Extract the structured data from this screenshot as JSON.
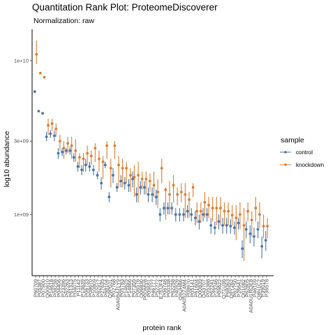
{
  "colors": {
    "control": "#4a74a8",
    "knockdown": "#d97d32",
    "axis": "#000000",
    "tick_text": "#4d4d4d"
  },
  "chart_data": {
    "type": "scatter",
    "title": "Quantitation Rank Plot: ProteomeDiscoverer",
    "subtitle": "Normalization: raw",
    "xlabel": "protein rank",
    "ylabel": "log10 abundance",
    "y_scale": "log10",
    "y_ticks": [
      1000000000,
      3000000000,
      10000000000
    ],
    "y_tick_labels": [
      "1e+09",
      "3e+09",
      "1e+10"
    ],
    "ylim": [
      400000000,
      16000000000
    ],
    "grid": false,
    "legend": {
      "title": "sample",
      "position": "right",
      "entries": [
        "control",
        "knockdown"
      ]
    },
    "categories": [
      "P60709",
      "P05387",
      "P07900",
      "Q00610",
      "P14618",
      "P08238",
      "P04406",
      "P23396",
      "P62263",
      "P61313",
      "P04075",
      "P11142",
      "P13639",
      "P06733",
      "P08670",
      "P10809",
      "P62917",
      "P27635",
      "P68104",
      "Q9P0J1",
      "P02768",
      "A0A0B4J1Y9",
      "P05783",
      "P14625",
      "P14866",
      "P07355",
      "P06576",
      "Q06830",
      "P0DMV8",
      "P09651",
      "P46777",
      "P52272",
      "E7EUF4",
      "P06748",
      "P00338",
      "P62258",
      "P40926",
      "Q9UHB6",
      "A0A0S2Z4M4",
      "P08670",
      "P05141",
      "P61604",
      "Q00839",
      "O43707",
      "P05388",
      "P62241",
      "P23246",
      "P09622",
      "Q71U36",
      "P68363",
      "Q9Y262",
      "P62750",
      "P26641",
      "Q01082",
      "P62805",
      "A0A0U1RQE8",
      "P46109",
      "Q8N1C2",
      "P39019",
      "P36578"
    ],
    "x_tick_labels": [
      "P60709",
      "P05387",
      "P07900",
      "Q00610",
      "P14618",
      "P08238",
      "P04406",
      "P23396",
      "P62263",
      "P61313",
      "P04075",
      "P11142",
      "P13639",
      "P06733",
      "P08670",
      "P10809",
      "P62917",
      "P27635",
      "P68104",
      "Q9P0J1",
      "P02768",
      "A0A0B4J1Y9",
      "P05783",
      "P14625",
      "P14866",
      "P07355",
      "P06576",
      "Q06830",
      "P0DMV8",
      "P09651",
      "P46777",
      "P52272",
      "E7EUF4",
      "P06748",
      "P00338",
      "P62258",
      "P40926",
      "Q9UHB6",
      "A0A0S2Z4M4",
      "P08670",
      "P05141",
      "P61604",
      "Q00839",
      "O43707",
      "P05388",
      "P62241",
      "P23246",
      "P09622",
      "Q71U36",
      "P68363",
      "Q9Y262",
      "P62750",
      "P26641",
      "Q01082",
      "P62805",
      "A0A0U1RQE8",
      "P46109",
      "Q8N1C2",
      "P39019",
      "P36578"
    ],
    "series": [
      {
        "name": "control",
        "values": [
          6300000000.0,
          4700000000.0,
          4550000000.0,
          3200000000.0,
          3350000000.0,
          3250000000.0,
          2500000000.0,
          2550000000.0,
          2600000000.0,
          2600000000.0,
          2350000000.0,
          2050000000.0,
          1950000000.0,
          2100000000.0,
          2050000000.0,
          1950000000.0,
          1800000000.0,
          1600000000.0,
          2100000000.0,
          1300000000.0,
          1800000000.0,
          1500000000.0,
          1650000000.0,
          1600000000.0,
          1550000000.0,
          1700000000.0,
          1350000000.0,
          1500000000.0,
          1500000000.0,
          1350000000.0,
          1350000000.0,
          1300000000.0,
          1000000000.0,
          1100000000.0,
          1100000000.0,
          1100000000.0,
          1000000000.0,
          1000000000.0,
          1000000000.0,
          1050000000.0,
          1000000000.0,
          950000000.0,
          900000000.0,
          1000000000.0,
          1000000000.0,
          850000000.0,
          820000000.0,
          900000000.0,
          850000000.0,
          850000000.0,
          840000000.0,
          820000000.0,
          880000000.0,
          600000000.0,
          800000000.0,
          750000000.0,
          720000000.0,
          800000000.0,
          620000000.0,
          680000000.0
        ],
        "upper": [
          6300000000.0,
          4700000000.0,
          4550000000.0,
          3450000000.0,
          3550000000.0,
          3500000000.0,
          2700000000.0,
          2700000000.0,
          2700000000.0,
          2750000000.0,
          2500000000.0,
          2200000000.0,
          2100000000.0,
          2300000000.0,
          2200000000.0,
          2100000000.0,
          1900000000.0,
          1750000000.0,
          2200000000.0,
          1400000000.0,
          2000000000.0,
          1600000000.0,
          1800000000.0,
          1750000000.0,
          1700000000.0,
          1900000000.0,
          1500000000.0,
          1650000000.0,
          1650000000.0,
          1500000000.0,
          1500000000.0,
          1450000000.0,
          1100000000.0,
          1200000000.0,
          1200000000.0,
          1200000000.0,
          1100000000.0,
          1100000000.0,
          1100000000.0,
          1150000000.0,
          1100000000.0,
          1050000000.0,
          1000000000.0,
          1100000000.0,
          1100000000.0,
          950000000.0,
          900000000.0,
          1000000000.0,
          950000000.0,
          950000000.0,
          930000000.0,
          900000000.0,
          950000000.0,
          680000000.0,
          900000000.0,
          850000000.0,
          820000000.0,
          900000000.0,
          720000000.0,
          780000000.0
        ],
        "lower": [
          6300000000.0,
          4700000000.0,
          4550000000.0,
          3000000000.0,
          3150000000.0,
          3000000000.0,
          2300000000.0,
          2400000000.0,
          2450000000.0,
          2450000000.0,
          2200000000.0,
          1900000000.0,
          1800000000.0,
          1900000000.0,
          1900000000.0,
          1800000000.0,
          1700000000.0,
          1450000000.0,
          2000000000.0,
          1200000000.0,
          1600000000.0,
          1400000000.0,
          1500000000.0,
          1450000000.0,
          1400000000.0,
          1500000000.0,
          1200000000.0,
          1350000000.0,
          1350000000.0,
          1200000000.0,
          1200000000.0,
          1150000000.0,
          900000000.0,
          1000000000.0,
          1000000000.0,
          1000000000.0,
          900000000.0,
          900000000.0,
          900000000.0,
          950000000.0,
          900000000.0,
          850000000.0,
          800000000.0,
          900000000.0,
          900000000.0,
          750000000.0,
          740000000.0,
          800000000.0,
          750000000.0,
          750000000.0,
          750000000.0,
          740000000.0,
          800000000.0,
          520000000.0,
          700000000.0,
          650000000.0,
          620000000.0,
          700000000.0,
          520000000.0,
          580000000.0
        ]
      },
      {
        "name": "knockdown",
        "values": [
          11000000000.0,
          8300000000.0,
          7800000000.0,
          3800000000.0,
          3900000000.0,
          3600000000.0,
          3000000000.0,
          2700000000.0,
          2900000000.0,
          2800000000.0,
          2600000000.0,
          2350000000.0,
          2300000000.0,
          2500000000.0,
          2400000000.0,
          2700000000.0,
          2300000000.0,
          2200000000.0,
          2800000000.0,
          2000000000.0,
          2800000000.0,
          2100000000.0,
          2000000000.0,
          2000000000.0,
          1800000000.0,
          1750000000.0,
          1800000000.0,
          1700000000.0,
          1700000000.0,
          1650000000.0,
          1550000000.0,
          1400000000.0,
          2000000000.0,
          1450000000.0,
          1350000000.0,
          1550000000.0,
          1350000000.0,
          1400000000.0,
          1350000000.0,
          1250000000.0,
          1500000000.0,
          1050000000.0,
          1050000000.0,
          1200000000.0,
          1150000000.0,
          1100000000.0,
          1100000000.0,
          1100000000.0,
          1050000000.0,
          1050000000.0,
          990000000.0,
          950000000.0,
          1000000000.0,
          850000000.0,
          1050000000.0,
          920000000.0,
          1100000000.0,
          1000000000.0,
          840000000.0,
          840000000.0
        ],
        "upper": [
          13500000000.0,
          8300000000.0,
          7800000000.0,
          4200000000.0,
          4200000000.0,
          3900000000.0,
          3300000000.0,
          3000000000.0,
          3200000000.0,
          3200000000.0,
          3100000000.0,
          2500000000.0,
          2500000000.0,
          2800000000.0,
          2600000000.0,
          2900000000.0,
          2600000000.0,
          2400000000.0,
          3000000000.0,
          2300000000.0,
          3000000000.0,
          2400000000.0,
          2300000000.0,
          2200000000.0,
          2000000000.0,
          2100000000.0,
          2200000000.0,
          1900000000.0,
          1900000000.0,
          1850000000.0,
          1900000000.0,
          1700000000.0,
          2300000000.0,
          1500000000.0,
          1650000000.0,
          1800000000.0,
          1500000000.0,
          1600000000.0,
          1600000000.0,
          1400000000.0,
          1600000000.0,
          1200000000.0,
          1200000000.0,
          1400000000.0,
          1300000000.0,
          1300000000.0,
          1300000000.0,
          1300000000.0,
          1200000000.0,
          1200000000.0,
          1150000000.0,
          1150000000.0,
          1200000000.0,
          1100000000.0,
          1200000000.0,
          1050000000.0,
          1300000000.0,
          1200000000.0,
          1000000000.0,
          950000000.0
        ],
        "lower": [
          9500000000.0,
          8300000000.0,
          7800000000.0,
          3300000000.0,
          3500000000.0,
          3200000000.0,
          2600000000.0,
          2300000000.0,
          2500000000.0,
          2300000000.0,
          2200000000.0,
          2000000000.0,
          1900000000.0,
          2100000000.0,
          2100000000.0,
          2200000000.0,
          1900000000.0,
          1700000000.0,
          2300000000.0,
          1500000000.0,
          2300000000.0,
          1500000000.0,
          1500000000.0,
          1600000000.0,
          1400000000.0,
          1300000000.0,
          1200000000.0,
          1450000000.0,
          1350000000.0,
          1400000000.0,
          1300000000.0,
          1100000000.0,
          1600000000.0,
          920000000.0,
          1000000000.0,
          1200000000.0,
          1150000000.0,
          1200000000.0,
          950000000.0,
          950000000.0,
          1300000000.0,
          880000000.0,
          880000000.0,
          950000000.0,
          950000000.0,
          900000000.0,
          850000000.0,
          850000000.0,
          850000000.0,
          850000000.0,
          850000000.0,
          680000000.0,
          800000000.0,
          500000000.0,
          900000000.0,
          720000000.0,
          900000000.0,
          820000000.0,
          700000000.0,
          700000000.0
        ]
      }
    ]
  }
}
